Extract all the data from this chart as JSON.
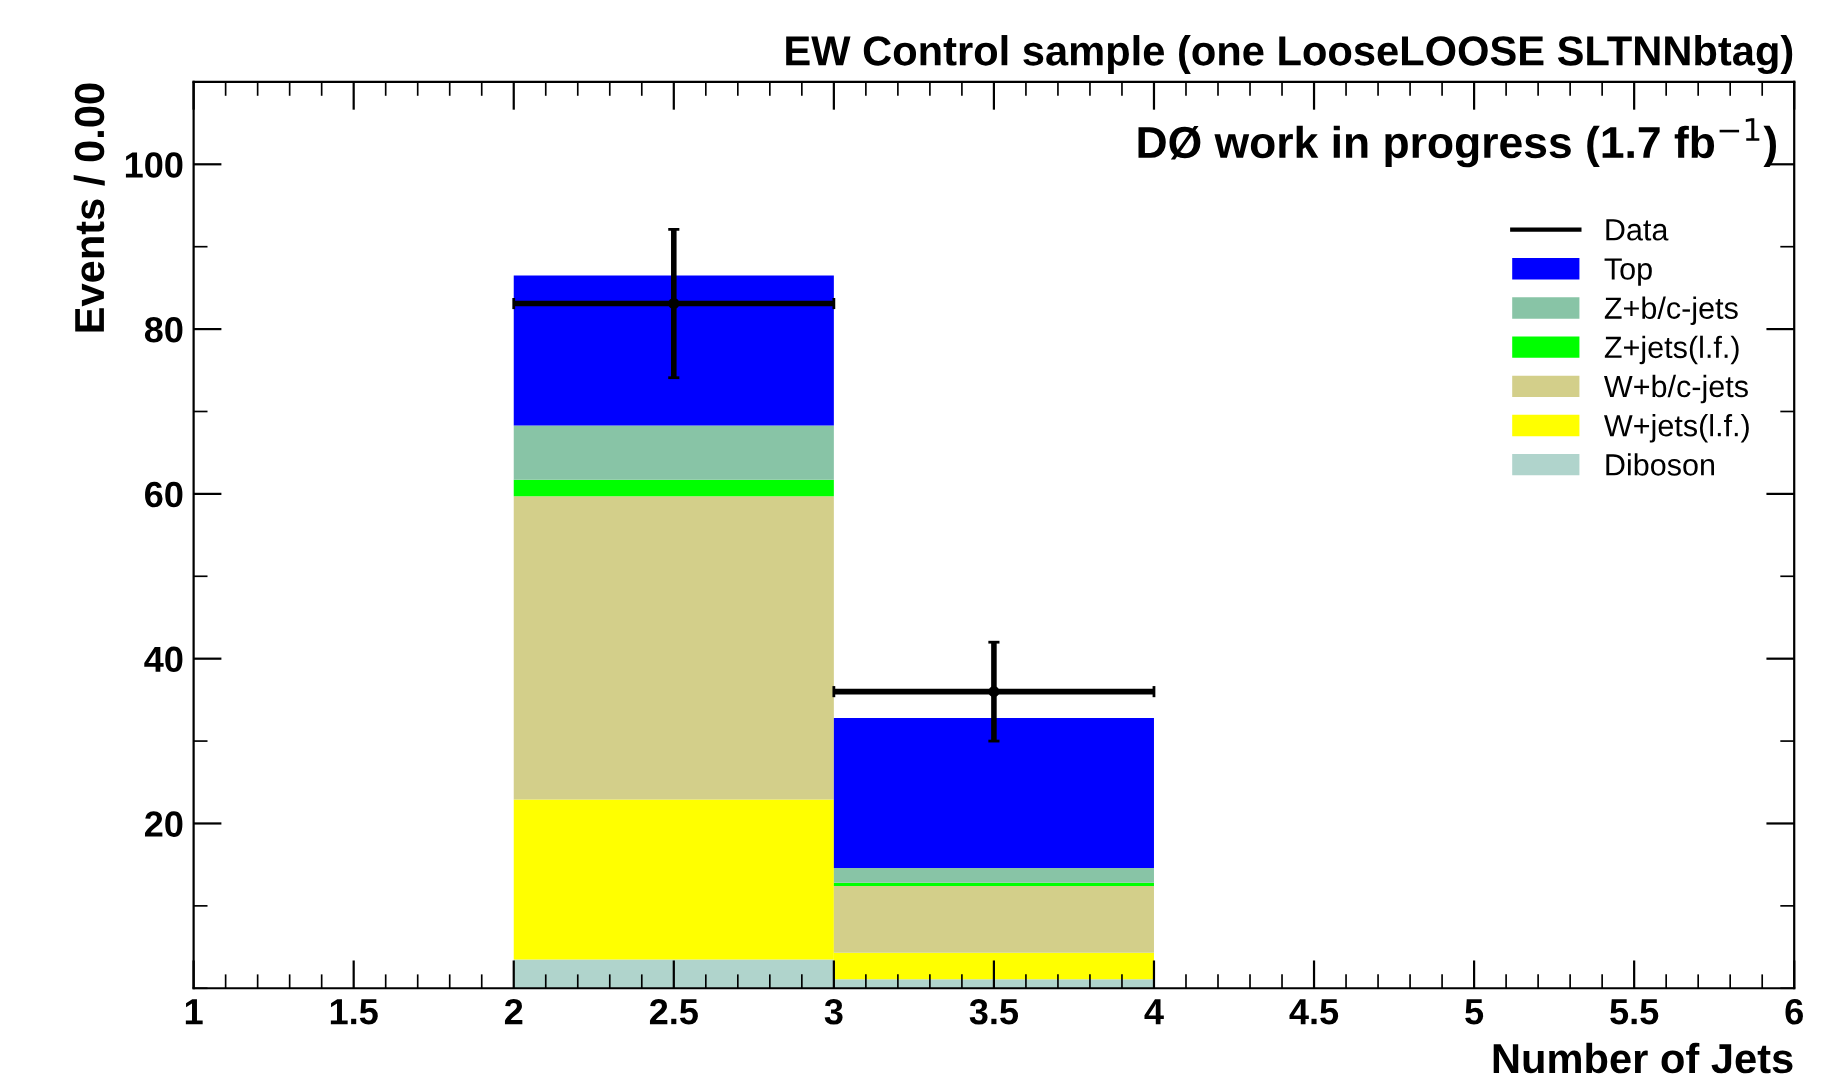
{
  "chart_data": {
    "type": "bar",
    "title": "EW Control sample (one LooseLOOSE SLTNNbtag)",
    "xlabel": "Number of Jets",
    "ylabel": "Events / 0.00",
    "annotations": [
      "DØ work in progress (1.7 fb$^{−1}$)"
    ],
    "x": [
      2.5,
      3.5
    ],
    "stacked": true,
    "series": [
      {
        "name": "Diboson",
        "color": "#b0d4cc",
        "values": [
          3.5,
          1.1
        ]
      },
      {
        "name": "W+jets(l.f.)",
        "color": "#ffff00",
        "values": [
          19.4,
          3.2
        ]
      },
      {
        "name": "W+b/c-jets",
        "color": "#d3cf8a",
        "values": [
          36.8,
          8.1
        ]
      },
      {
        "name": "Z+jets(l.f.)",
        "color": "#00ff00",
        "values": [
          2.0,
          0.4
        ]
      },
      {
        "name": "Z+b/c-jets",
        "color": "#88c4a6",
        "values": [
          6.6,
          1.8
        ]
      },
      {
        "name": "Top",
        "color": "#0000ff",
        "values": [
          18.2,
          18.2
        ]
      },
      {
        "name": "Data",
        "type": "scatter",
        "color": "#000000",
        "x": [
          2.5,
          3.5
        ],
        "values": [
          83.1,
          36.0
        ],
        "errors": [
          9,
          6
        ],
        "xerrors": [
          0.5,
          0.5
        ]
      }
    ],
    "xlim": [
      1,
      6
    ],
    "xticks": [
      1,
      1.5,
      2,
      2.5,
      3,
      3.5,
      4,
      4.5,
      5,
      5.5,
      6
    ],
    "ylim": [
      0,
      110
    ],
    "yticks": [
      20,
      40,
      60,
      80,
      100
    ],
    "grid": false,
    "legend": "top right"
  }
}
